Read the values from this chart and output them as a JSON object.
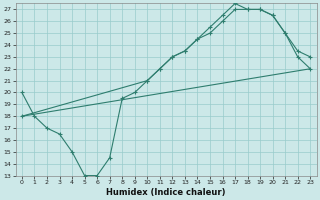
{
  "title": "",
  "xlabel": "Humidex (Indice chaleur)",
  "bg_color": "#cce8e8",
  "grid_color": "#99cccc",
  "line_color": "#2e7d6e",
  "xlim": [
    -0.5,
    23.5
  ],
  "ylim": [
    13,
    27.5
  ],
  "yticks": [
    13,
    14,
    15,
    16,
    17,
    18,
    19,
    20,
    21,
    22,
    23,
    24,
    25,
    26,
    27
  ],
  "xticks": [
    0,
    1,
    2,
    3,
    4,
    5,
    6,
    7,
    8,
    9,
    10,
    11,
    12,
    13,
    14,
    15,
    16,
    17,
    18,
    19,
    20,
    21,
    22,
    23
  ],
  "line1_x": [
    0,
    1,
    2,
    3,
    4,
    5,
    6,
    7,
    8,
    9,
    10,
    11,
    12,
    13,
    14,
    15,
    16,
    17,
    18,
    19,
    20,
    21,
    22,
    23
  ],
  "line1_y": [
    20,
    18,
    17,
    16.5,
    15,
    13,
    13,
    14.5,
    19.5,
    20,
    21,
    22,
    23,
    23.5,
    24.5,
    25,
    26,
    27,
    27,
    27,
    26.5,
    25,
    23,
    22
  ],
  "line2_x": [
    0,
    23
  ],
  "line2_y": [
    18,
    22
  ],
  "line3_x": [
    0,
    10,
    11,
    12,
    13,
    14,
    15,
    16,
    17,
    18,
    19,
    20,
    21,
    22,
    23
  ],
  "line3_y": [
    18,
    21,
    22,
    23,
    23.5,
    24.5,
    25.5,
    26.5,
    27.5,
    27,
    27,
    26.5,
    25,
    23.5,
    23
  ]
}
